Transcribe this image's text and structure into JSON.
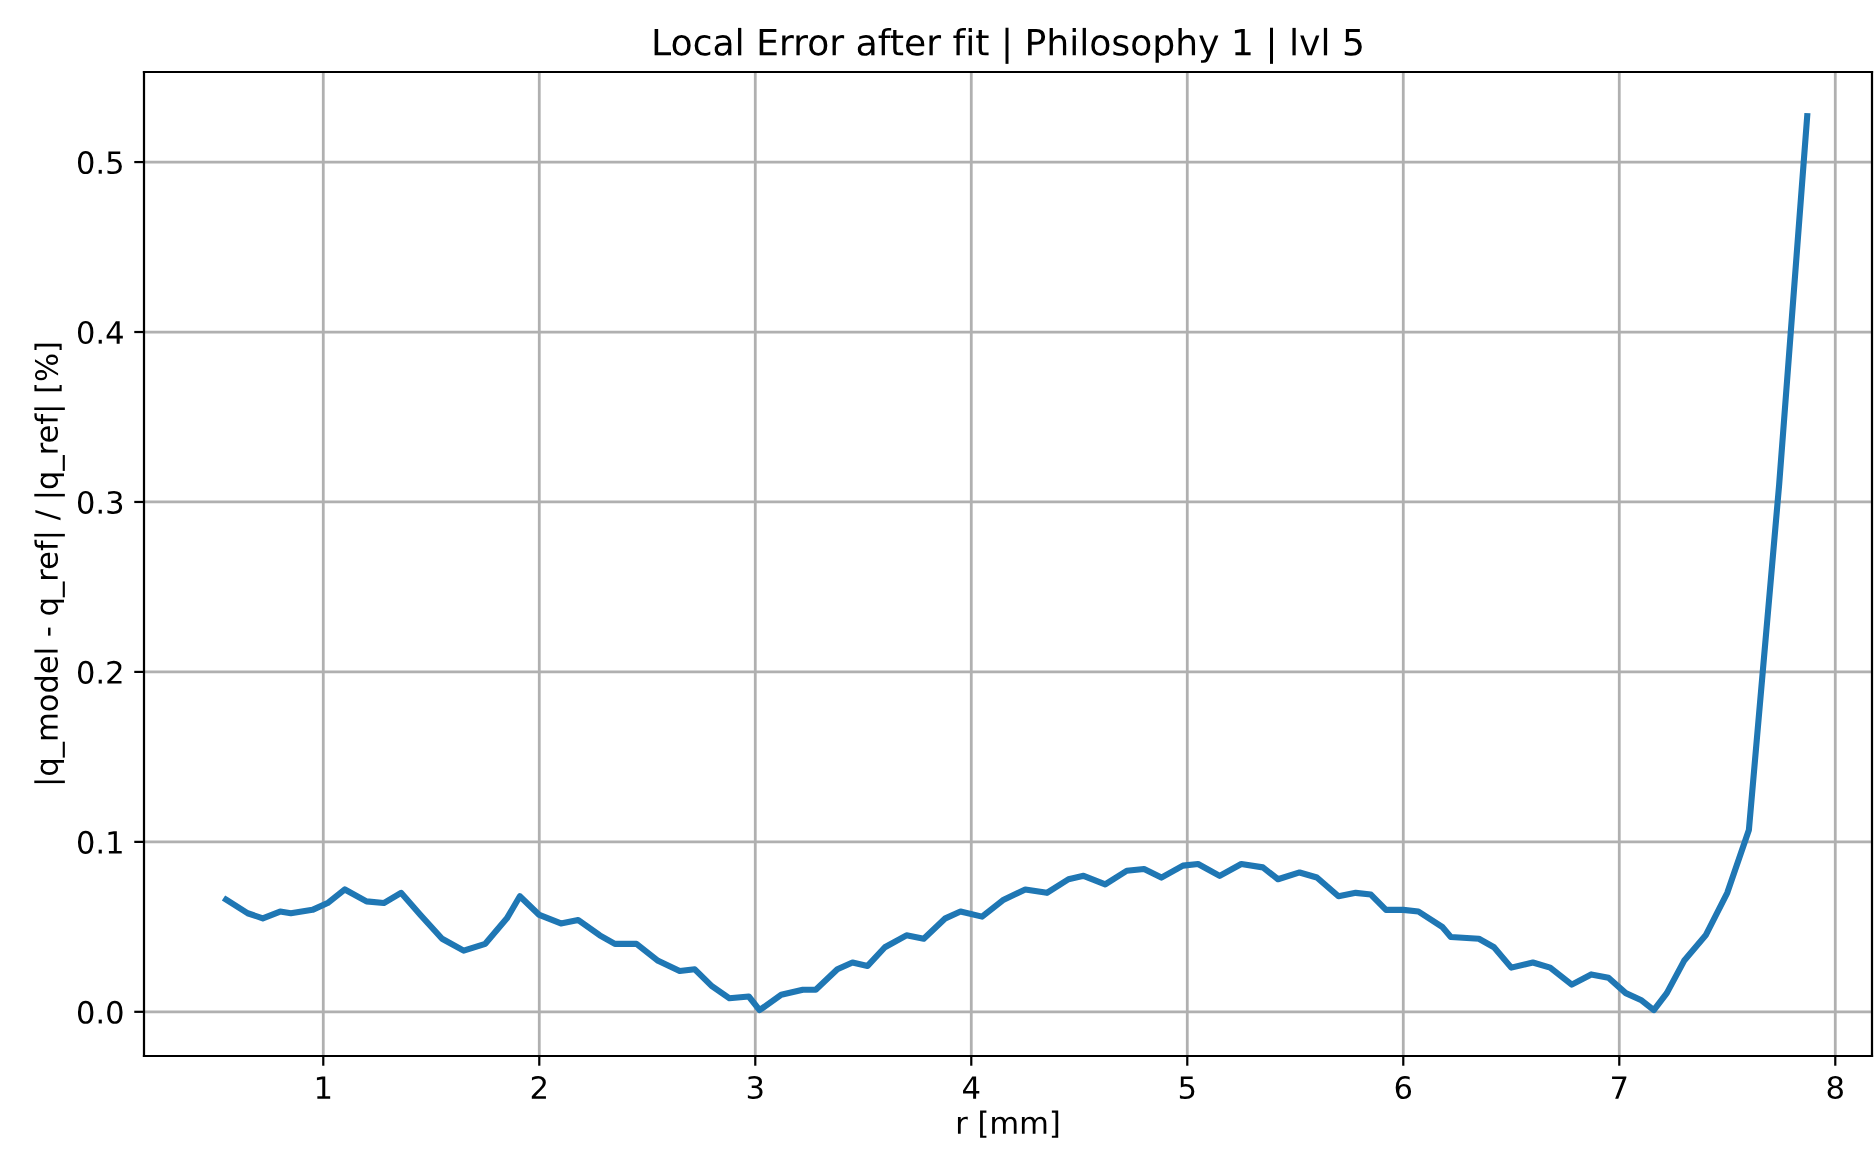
{
  "chart_data": {
    "type": "line",
    "title": "Local Error after fit | Philosophy 1 | lvl 5",
    "xlabel": "r [mm]",
    "ylabel": "|q_model - q_ref| / |q_ref| [%]",
    "x": [
      0.55,
      0.65,
      0.72,
      0.8,
      0.85,
      0.95,
      1.02,
      1.1,
      1.2,
      1.28,
      1.36,
      1.45,
      1.55,
      1.65,
      1.75,
      1.85,
      1.91,
      2.0,
      2.1,
      2.18,
      2.28,
      2.35,
      2.45,
      2.55,
      2.65,
      2.72,
      2.8,
      2.88,
      2.97,
      3.02,
      3.12,
      3.22,
      3.28,
      3.38,
      3.45,
      3.52,
      3.6,
      3.7,
      3.78,
      3.88,
      3.95,
      4.05,
      4.15,
      4.25,
      4.35,
      4.45,
      4.52,
      4.62,
      4.72,
      4.8,
      4.88,
      4.98,
      5.05,
      5.15,
      5.25,
      5.35,
      5.42,
      5.52,
      5.6,
      5.7,
      5.78,
      5.85,
      5.92,
      6.0,
      6.07,
      6.18,
      6.22,
      6.35,
      6.42,
      6.5,
      6.6,
      6.68,
      6.78,
      6.87,
      6.95,
      7.03,
      7.1,
      7.16,
      7.22,
      7.3,
      7.4,
      7.5,
      7.6,
      7.74,
      7.87
    ],
    "series": [
      {
        "color": "#1f77b4",
        "values": [
          0.066,
          0.058,
          0.055,
          0.059,
          0.058,
          0.06,
          0.064,
          0.072,
          0.065,
          0.064,
          0.07,
          0.057,
          0.043,
          0.036,
          0.04,
          0.055,
          0.068,
          0.057,
          0.052,
          0.054,
          0.045,
          0.04,
          0.04,
          0.03,
          0.024,
          0.025,
          0.015,
          0.008,
          0.009,
          0.001,
          0.01,
          0.013,
          0.013,
          0.025,
          0.029,
          0.027,
          0.038,
          0.045,
          0.043,
          0.055,
          0.059,
          0.056,
          0.066,
          0.072,
          0.07,
          0.078,
          0.08,
          0.075,
          0.083,
          0.084,
          0.079,
          0.086,
          0.087,
          0.08,
          0.087,
          0.085,
          0.078,
          0.082,
          0.079,
          0.068,
          0.07,
          0.069,
          0.06,
          0.06,
          0.059,
          0.05,
          0.044,
          0.043,
          0.038,
          0.026,
          0.029,
          0.026,
          0.016,
          0.022,
          0.02,
          0.011,
          0.007,
          0.001,
          0.011,
          0.03,
          0.045,
          0.07,
          0.107,
          0.31,
          0.527
        ]
      }
    ],
    "xlim": [
      0.17,
      8.17
    ],
    "ylim": [
      -0.026,
      0.553
    ],
    "xticks": [
      1,
      2,
      3,
      4,
      5,
      6,
      7,
      8
    ],
    "yticks": [
      {
        "value": 0,
        "label": "0.0"
      },
      0.1,
      0.2,
      0.3,
      0.4,
      0.5
    ],
    "grid": true,
    "marker": "none",
    "line_style": "solid"
  }
}
